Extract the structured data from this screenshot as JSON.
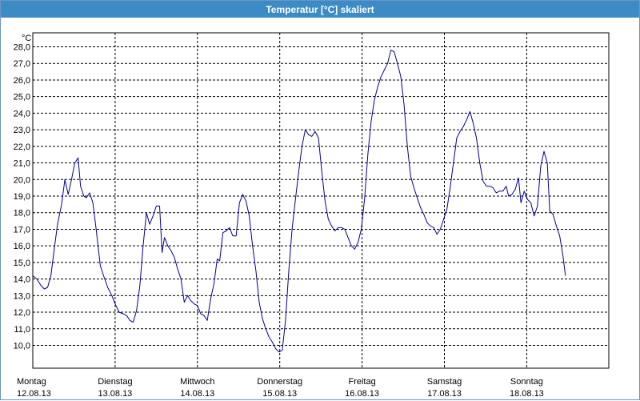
{
  "window": {
    "title": "Temperatur [°C] skaliert"
  },
  "chart_data": {
    "type": "line",
    "title": "Temperatur [°C] skaliert",
    "ylabel": "°C",
    "xlabel": "",
    "ylim": [
      9.0,
      28.5
    ],
    "y_ticks": [
      "28,0",
      "27,0",
      "26,0",
      "25,0",
      "24,0",
      "23,0",
      "22,0",
      "21,0",
      "20,0",
      "19,0",
      "18,0",
      "17,0",
      "16,0",
      "15,0",
      "14,0",
      "13,0",
      "12,0",
      "11,0",
      "10,0"
    ],
    "y_tick_values": [
      28,
      27,
      26,
      25,
      24,
      23,
      22,
      21,
      20,
      19,
      18,
      17,
      16,
      15,
      14,
      13,
      12,
      11,
      10
    ],
    "x_range_days": [
      0,
      7
    ],
    "days": [
      {
        "weekday": "Montag",
        "date": "12.08.13"
      },
      {
        "weekday": "Dienstag",
        "date": "13.08.13"
      },
      {
        "weekday": "Mittwoch",
        "date": "14.08.13"
      },
      {
        "weekday": "Donnerstag",
        "date": "15.08.13"
      },
      {
        "weekday": "Freitag",
        "date": "16.08.13"
      },
      {
        "weekday": "Samstag",
        "date": "17.08.13"
      },
      {
        "weekday": "Sonntag",
        "date": "18.08.13"
      }
    ],
    "grid": true,
    "line_color": "#000099",
    "series": [
      {
        "points": [
          [
            0.0,
            14.2
          ],
          [
            0.05,
            14.0
          ],
          [
            0.1,
            13.6
          ],
          [
            0.14,
            13.4
          ],
          [
            0.18,
            13.5
          ],
          [
            0.22,
            14.2
          ],
          [
            0.26,
            15.8
          ],
          [
            0.3,
            17.3
          ],
          [
            0.35,
            18.5
          ],
          [
            0.39,
            20.0
          ],
          [
            0.43,
            19.1
          ],
          [
            0.47,
            20.0
          ],
          [
            0.51,
            21.0
          ],
          [
            0.55,
            21.3
          ],
          [
            0.58,
            19.6
          ],
          [
            0.62,
            19.0
          ],
          [
            0.65,
            18.9
          ],
          [
            0.69,
            19.2
          ],
          [
            0.73,
            18.6
          ],
          [
            0.77,
            17.0
          ],
          [
            0.82,
            14.8
          ],
          [
            0.86,
            14.2
          ],
          [
            0.91,
            13.5
          ],
          [
            0.96,
            13.0
          ],
          [
            1.0,
            12.5
          ],
          [
            1.05,
            12.0
          ],
          [
            1.1,
            11.9
          ],
          [
            1.14,
            11.8
          ],
          [
            1.18,
            11.5
          ],
          [
            1.22,
            11.4
          ],
          [
            1.26,
            12.1
          ],
          [
            1.3,
            13.6
          ],
          [
            1.34,
            16.0
          ],
          [
            1.38,
            18.0
          ],
          [
            1.42,
            17.3
          ],
          [
            1.46,
            17.8
          ],
          [
            1.5,
            18.4
          ],
          [
            1.54,
            18.4
          ],
          [
            1.57,
            15.6
          ],
          [
            1.6,
            16.5
          ],
          [
            1.64,
            16.0
          ],
          [
            1.68,
            15.7
          ],
          [
            1.72,
            15.3
          ],
          [
            1.76,
            14.6
          ],
          [
            1.8,
            14.0
          ],
          [
            1.84,
            12.6
          ],
          [
            1.88,
            13.0
          ],
          [
            1.92,
            12.7
          ],
          [
            1.96,
            12.5
          ],
          [
            2.0,
            12.4
          ],
          [
            2.04,
            11.9
          ],
          [
            2.08,
            11.8
          ],
          [
            2.12,
            11.5
          ],
          [
            2.16,
            12.8
          ],
          [
            2.2,
            13.7
          ],
          [
            2.24,
            15.2
          ],
          [
            2.27,
            15.1
          ],
          [
            2.31,
            16.8
          ],
          [
            2.35,
            16.9
          ],
          [
            2.39,
            17.1
          ],
          [
            2.43,
            16.6
          ],
          [
            2.47,
            16.6
          ],
          [
            2.51,
            18.6
          ],
          [
            2.55,
            19.1
          ],
          [
            2.59,
            18.7
          ],
          [
            2.63,
            17.8
          ],
          [
            2.67,
            16.0
          ],
          [
            2.71,
            14.5
          ],
          [
            2.75,
            12.6
          ],
          [
            2.79,
            11.6
          ],
          [
            2.83,
            11.0
          ],
          [
            2.87,
            10.5
          ],
          [
            2.91,
            10.2
          ],
          [
            2.95,
            9.8
          ],
          [
            2.99,
            9.6
          ],
          [
            3.03,
            9.7
          ],
          [
            3.07,
            11.5
          ],
          [
            3.11,
            14.5
          ],
          [
            3.15,
            17.0
          ],
          [
            3.19,
            18.8
          ],
          [
            3.23,
            20.5
          ],
          [
            3.27,
            22.0
          ],
          [
            3.31,
            23.0
          ],
          [
            3.35,
            22.7
          ],
          [
            3.39,
            22.6
          ],
          [
            3.43,
            22.9
          ],
          [
            3.47,
            22.5
          ],
          [
            3.51,
            20.5
          ],
          [
            3.55,
            18.7
          ],
          [
            3.59,
            17.6
          ],
          [
            3.63,
            17.2
          ],
          [
            3.67,
            16.9
          ],
          [
            3.71,
            17.1
          ],
          [
            3.75,
            17.1
          ],
          [
            3.79,
            17.0
          ],
          [
            3.83,
            16.5
          ],
          [
            3.87,
            16.0
          ],
          [
            3.91,
            15.8
          ],
          [
            3.95,
            16.2
          ],
          [
            3.99,
            17.0
          ],
          [
            4.03,
            18.8
          ],
          [
            4.07,
            21.5
          ],
          [
            4.11,
            23.5
          ],
          [
            4.15,
            24.8
          ],
          [
            4.19,
            25.6
          ],
          [
            4.23,
            26.2
          ],
          [
            4.27,
            26.6
          ],
          [
            4.31,
            27.0
          ],
          [
            4.35,
            27.8
          ],
          [
            4.39,
            27.7
          ],
          [
            4.43,
            27.0
          ],
          [
            4.47,
            26.2
          ],
          [
            4.51,
            24.5
          ],
          [
            4.55,
            22.0
          ],
          [
            4.59,
            20.2
          ],
          [
            4.63,
            19.5
          ],
          [
            4.67,
            18.9
          ],
          [
            4.71,
            18.3
          ],
          [
            4.75,
            17.9
          ],
          [
            4.79,
            17.4
          ],
          [
            4.83,
            17.2
          ],
          [
            4.87,
            17.1
          ],
          [
            4.91,
            16.7
          ],
          [
            4.95,
            17.0
          ],
          [
            4.99,
            17.6
          ],
          [
            5.03,
            18.2
          ],
          [
            5.07,
            19.5
          ],
          [
            5.11,
            21.0
          ],
          [
            5.15,
            22.5
          ],
          [
            5.19,
            22.9
          ],
          [
            5.23,
            23.2
          ],
          [
            5.27,
            23.6
          ],
          [
            5.31,
            24.1
          ],
          [
            5.35,
            23.4
          ],
          [
            5.39,
            22.5
          ],
          [
            5.43,
            21.0
          ],
          [
            5.47,
            19.9
          ],
          [
            5.51,
            19.6
          ],
          [
            5.55,
            19.6
          ],
          [
            5.59,
            19.5
          ],
          [
            5.63,
            19.2
          ],
          [
            5.67,
            19.3
          ],
          [
            5.71,
            19.3
          ],
          [
            5.75,
            19.6
          ],
          [
            5.78,
            19.0
          ],
          [
            5.82,
            19.1
          ],
          [
            5.86,
            19.4
          ],
          [
            5.9,
            20.1
          ],
          [
            5.93,
            18.6
          ],
          [
            5.97,
            19.3
          ],
          [
            6.01,
            18.8
          ],
          [
            6.05,
            18.6
          ],
          [
            6.09,
            17.8
          ],
          [
            6.13,
            18.4
          ],
          [
            6.17,
            20.8
          ],
          [
            6.21,
            21.7
          ],
          [
            6.25,
            21.0
          ],
          [
            6.28,
            18.1
          ],
          [
            6.32,
            17.9
          ],
          [
            6.36,
            17.2
          ],
          [
            6.4,
            16.6
          ],
          [
            6.44,
            15.4
          ],
          [
            6.47,
            14.2
          ]
        ]
      }
    ]
  }
}
